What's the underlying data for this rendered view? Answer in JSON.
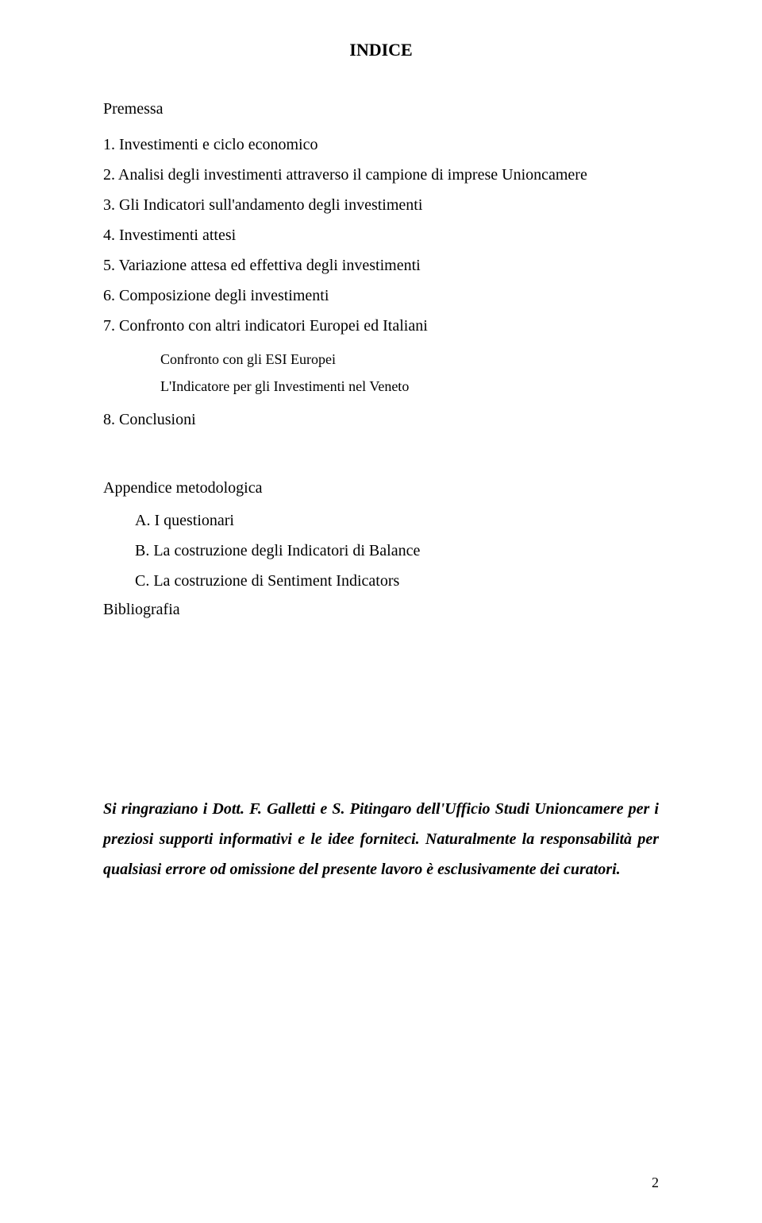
{
  "title": "INDICE",
  "premessa_label": "Premessa",
  "items": [
    {
      "num": "1.",
      "label": "Investimenti e ciclo economico"
    },
    {
      "num": "2.",
      "label": "Analisi degli investimenti attraverso il campione di imprese Unioncamere"
    },
    {
      "num": "3.",
      "label": "Gli Indicatori sull'andamento degli investimenti"
    },
    {
      "num": "4.",
      "label": "Investimenti attesi"
    },
    {
      "num": "5.",
      "label": "Variazione attesa ed effettiva degli investimenti"
    },
    {
      "num": "6.",
      "label": "Composizione degli investimenti"
    },
    {
      "num": "7.",
      "label": "Confronto con altri indicatori Europei ed Italiani"
    }
  ],
  "sub_items": [
    "Confronto con gli ESI Europei",
    "L'Indicatore per gli Investimenti nel Veneto"
  ],
  "item8": {
    "num": "8.",
    "label": "Conclusioni"
  },
  "appendix_heading": "Appendice metodologica",
  "appendix_items": [
    {
      "letter": "A.",
      "label": "I questionari"
    },
    {
      "letter": "B.",
      "label": "La costruzione degli Indicatori di Balance"
    },
    {
      "letter": "C.",
      "label": "La costruzione di Sentiment Indicators"
    }
  ],
  "bibliografia": "Bibliografia",
  "acknowledgment": "Si ringraziano i Dott. F. Galletti e S. Pitingaro dell'Ufficio Studi Unioncamere per i preziosi supporti informativi e le idee forniteci. Naturalmente la responsabilità per qualsiasi errore od omissione del presente lavoro è esclusivamente dei curatori.",
  "page_number": "2"
}
